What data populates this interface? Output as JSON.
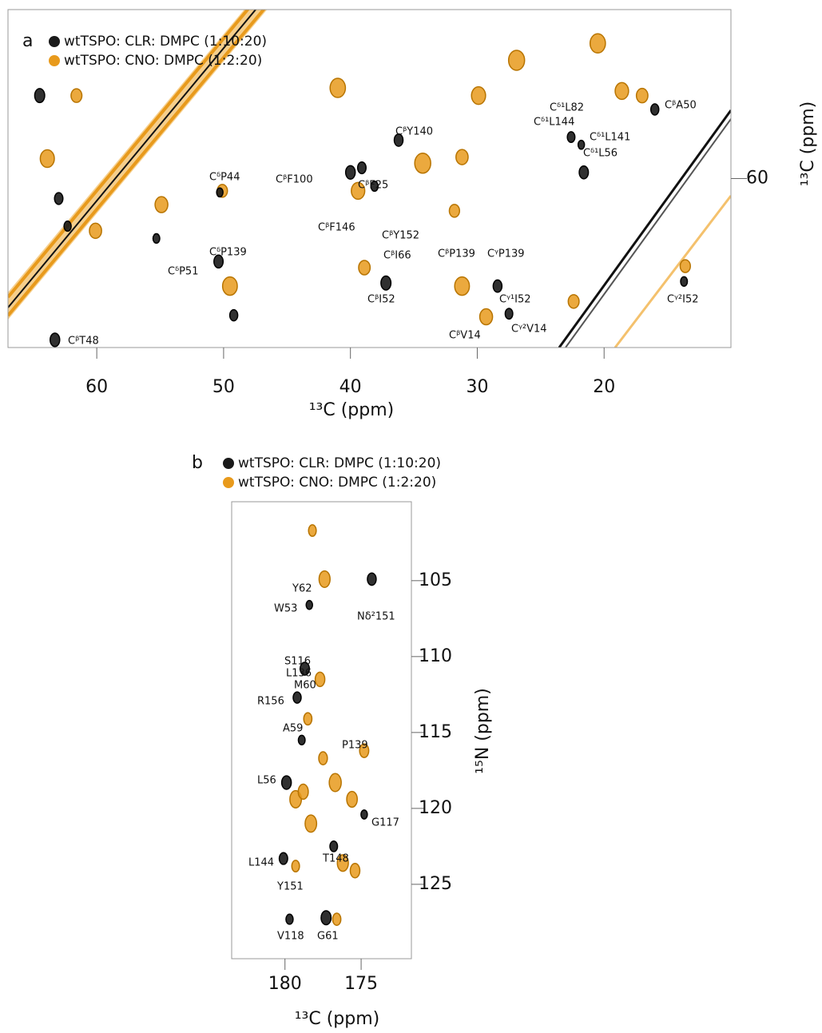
{
  "chart_data": [
    {
      "type": "contour",
      "label": "a",
      "xlabel": "¹³C (ppm)",
      "ylabel": "¹³C (ppm)",
      "xlim": [
        10,
        67
      ],
      "x_reversed": true,
      "xticks": [
        60,
        50,
        40,
        30,
        20
      ],
      "ylim": [
        49,
        71
      ],
      "y_reversed": true,
      "yticks": [
        60
      ],
      "series": [
        {
          "name": "wtTSPO: CNO: DMPC (1:2:20)",
          "color": "#e89a1c",
          "x": [
            50.1,
            49.5,
            54.9,
            61.6,
            41.0,
            39.4,
            38.9,
            34.3,
            29.9,
            31.2,
            31.8,
            31.2,
            29.3,
            22.4,
            20.5,
            18.6,
            17.0,
            26.9,
            63.9,
            60.1,
            13.6
          ],
          "y": [
            60.8,
            67.0,
            61.7,
            54.6,
            54.1,
            60.8,
            65.8,
            59.0,
            54.6,
            58.6,
            62.1,
            67.0,
            69.0,
            68.0,
            51.2,
            54.3,
            54.6,
            52.3,
            58.7,
            63.4,
            65.7
          ]
        },
        {
          "name": "wtTSPO: CLR: DMPC (1:10:20)",
          "color": "#1a1a1a",
          "x": [
            50.3,
            50.4,
            49.2,
            55.3,
            40.0,
            39.1,
            38.1,
            37.2,
            36.2,
            22.6,
            21.8,
            21.6,
            16.0,
            13.7,
            63.3,
            63.0,
            62.3,
            64.5,
            28.4,
            27.5
          ],
          "y": [
            60.9,
            65.4,
            68.9,
            63.9,
            59.6,
            59.3,
            60.5,
            66.8,
            57.5,
            57.3,
            57.8,
            59.6,
            55.5,
            66.7,
            70.5,
            61.3,
            63.1,
            54.6,
            67.0,
            68.8
          ]
        }
      ],
      "annotations": [
        "CᵝA50",
        "Cᵟ¹L82",
        "Cᵟ¹L144",
        "Cᵟ¹L141",
        "Cᵟ¹L56",
        "CᵝY140",
        "CᵟP44",
        "CᵝF25",
        "CᵝF100",
        "CᵝF146",
        "CᵝY152",
        "CᵟP139",
        "CᵟP51",
        "CᵝI66",
        "CᵝI52",
        "CᵝP139",
        "CᵞP139",
        "Cᵞ¹I52",
        "CᵝV14",
        "Cᵞ²V14",
        "Cᵞ²I52",
        "CᵝT48"
      ]
    },
    {
      "type": "contour",
      "label": "b",
      "xlabel": "¹³C (ppm)",
      "ylabel": "¹⁵N (ppm)",
      "xlim": [
        171.7,
        183.5
      ],
      "x_reversed": true,
      "xticks": [
        180,
        175
      ],
      "ylim": [
        99.8,
        129.9
      ],
      "y_reversed": true,
      "yticks": [
        105,
        110,
        115,
        120,
        125
      ],
      "series": [
        {
          "name": "wtTSPO: CNO: DMPC (1:2:20)",
          "color": "#e89a1c",
          "x": [
            178.2,
            177.4,
            177.7,
            178.5,
            179.3,
            178.8,
            177.5,
            176.7,
            175.6,
            174.8,
            179.3,
            176.2,
            175.4,
            176.6,
            178.3
          ],
          "y": [
            101.7,
            104.9,
            111.5,
            114.1,
            119.4,
            118.9,
            116.7,
            118.3,
            119.4,
            116.2,
            123.8,
            123.6,
            124.1,
            127.3,
            121.0
          ]
        },
        {
          "name": "wtTSPO: CLR: DMPC (1:10:20)",
          "color": "#1a1a1a",
          "x": [
            178.4,
            178.7,
            179.2,
            178.9,
            179.9,
            180.1,
            179.7,
            177.3,
            174.3,
            176.8,
            174.8
          ],
          "y": [
            106.6,
            110.8,
            112.7,
            115.5,
            118.3,
            123.3,
            127.3,
            127.2,
            104.9,
            122.5,
            120.4
          ]
        }
      ],
      "annotations": [
        "Y62",
        "W53",
        "Nδ²151",
        "S116",
        "L136",
        "M60",
        "R156",
        "A59",
        "P139",
        "L56",
        "G117",
        "L144",
        "T148",
        "Y151",
        "V118",
        "G61"
      ]
    }
  ]
}
